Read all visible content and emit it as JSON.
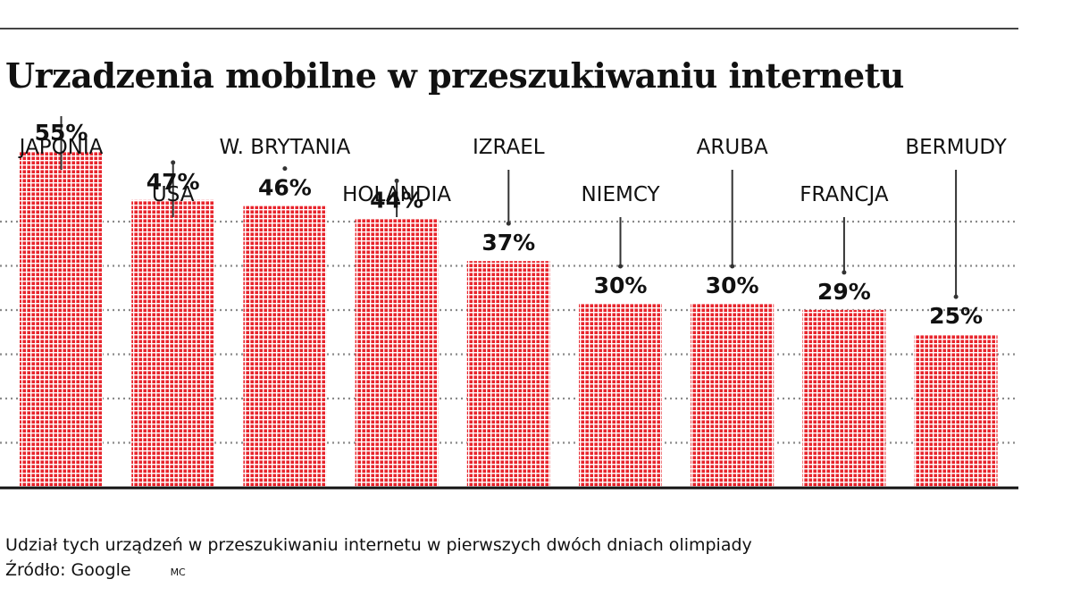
{
  "chart_data": {
    "type": "bar",
    "title": "Urzadzenia mobilne w przeszukiwaniu internetu",
    "categories": [
      "JAPONIA",
      "USA",
      "W. BRYTANIA",
      "HOLANDIA",
      "IZRAEL",
      "NIEMCY",
      "ARUBA",
      "FRANCJA",
      "BERMUDY"
    ],
    "values": [
      55,
      47,
      46,
      44,
      37,
      30,
      30,
      29,
      25
    ],
    "value_labels": [
      "55%",
      "47%",
      "46%",
      "44%",
      "37%",
      "30%",
      "30%",
      "29%",
      "25%"
    ],
    "unit": "%",
    "ylim": [
      0,
      60
    ],
    "grid": true,
    "xlabel": "",
    "ylabel": ""
  },
  "footer": {
    "caption": "Udział tych urządzeń w przeszukiwaniu internetu w pierwszych dwóch  dniach olimpiady",
    "source": "Źródło: Google",
    "author": "MC"
  },
  "colors": {
    "bar_dot": "#e8242c",
    "grid": "#8a8a8a",
    "axis": "#111111",
    "leader": "#333333"
  }
}
